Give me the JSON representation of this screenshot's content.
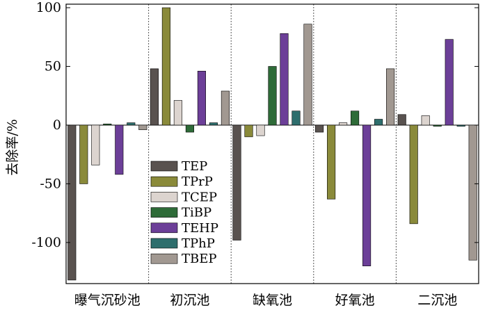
{
  "chart_data": {
    "type": "bar",
    "title": "",
    "xlabel": "",
    "ylabel": "去除率/%",
    "ylim": [
      -135,
      103
    ],
    "yticks": [
      100,
      50,
      0,
      -50,
      -100
    ],
    "grid": false,
    "category_separators": "dotted",
    "legend_placement": "lower-left of plot",
    "categories": [
      "曝气沉砂池",
      "初沉池",
      "缺氧池",
      "好氧池",
      "二沉池"
    ],
    "series": [
      {
        "name": "TEP",
        "color": "#59524f",
        "values": [
          -132,
          48,
          -98,
          -6,
          9
        ]
      },
      {
        "name": "TPrP",
        "color": "#8a8a3a",
        "values": [
          -50,
          100,
          -10,
          -63,
          -84
        ]
      },
      {
        "name": "TCEP",
        "color": "#dcd4cf",
        "values": [
          -34,
          21,
          -9,
          2,
          8
        ]
      },
      {
        "name": "TiBP",
        "color": "#2e6b38",
        "values": [
          1,
          -6,
          50,
          12,
          -1
        ]
      },
      {
        "name": "TEHP",
        "color": "#6c3f98",
        "values": [
          -42,
          46,
          78,
          -120,
          73
        ]
      },
      {
        "name": "TPhP",
        "color": "#2e6e6d",
        "values": [
          2,
          2,
          12,
          5,
          -1
        ]
      },
      {
        "name": "TBEP",
        "color": "#a19891",
        "values": [
          -4,
          29,
          86,
          48,
          -115
        ]
      }
    ]
  }
}
